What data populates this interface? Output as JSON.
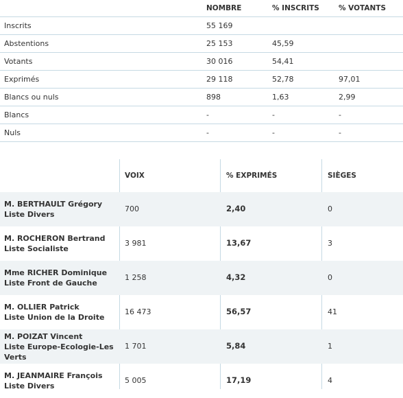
{
  "stats": {
    "headers": [
      "",
      "NOMBRE",
      "% INSCRITS",
      "% VOTANTS"
    ],
    "rows": [
      [
        "Inscrits",
        "55 169",
        "",
        ""
      ],
      [
        "Abstentions",
        "25 153",
        "45,59",
        ""
      ],
      [
        "Votants",
        "30 016",
        "54,41",
        ""
      ],
      [
        "Exprimés",
        "29 118",
        "52,78",
        "97,01"
      ],
      [
        "Blancs ou nuls",
        "898",
        "1,63",
        "2,99"
      ],
      [
        "Blancs",
        "-",
        "-",
        "-"
      ],
      [
        "Nuls",
        "-",
        "-",
        "-"
      ]
    ]
  },
  "candidates": {
    "headers": [
      "",
      "VOIX",
      "% EXPRIMÉS",
      "SIÈGES"
    ],
    "rows": [
      {
        "name": "M. BERTHAULT Grégory",
        "list": "Liste Divers",
        "voix": "700",
        "pct": "2,40",
        "sieges": "0"
      },
      {
        "name": "M. ROCHERON Bertrand",
        "list": "Liste Socialiste",
        "voix": "3 981",
        "pct": "13,67",
        "sieges": "3"
      },
      {
        "name": "Mme RICHER Dominique",
        "list": "Liste Front de Gauche",
        "voix": "1 258",
        "pct": "4,32",
        "sieges": "0"
      },
      {
        "name": "M. OLLIER Patrick",
        "list": "Liste Union de la Droite",
        "voix": "16 473",
        "pct": "56,57",
        "sieges": "41"
      },
      {
        "name": "M. POIZAT Vincent",
        "list": "Liste Europe-Ecologie-Les Verts",
        "voix": "1 701",
        "pct": "5,84",
        "sieges": "1"
      },
      {
        "name": "M. JEANMAIRE François",
        "list": "Liste Divers",
        "voix": "5 005",
        "pct": "17,19",
        "sieges": "4"
      }
    ]
  }
}
